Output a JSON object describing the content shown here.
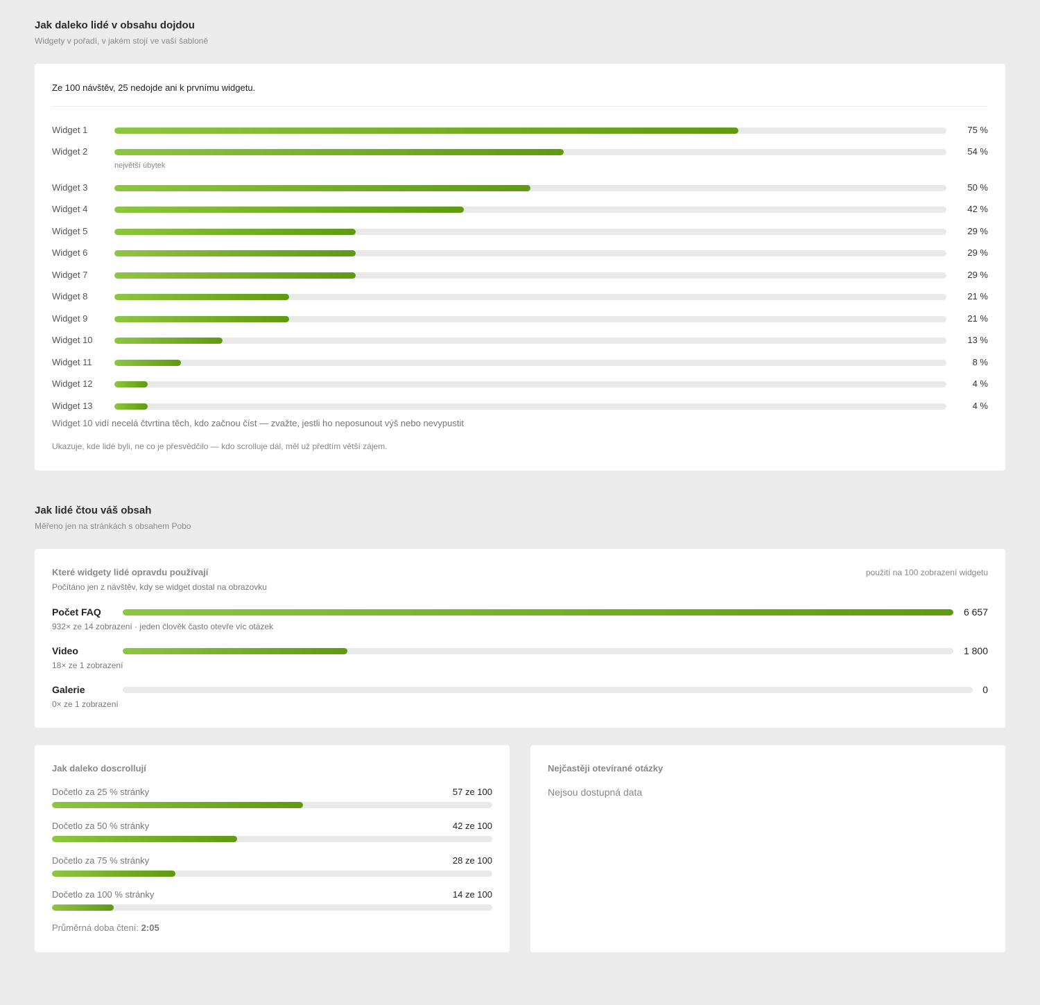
{
  "funnel_section": {
    "title": "Jak daleko lidé v obsahu dojdou",
    "subtitle": "Widgety v pořadí, v jakém stojí ve vaší šabloně",
    "headline": "Ze 100 návštěv, 25 nedojde ani k prvnímu widgetu.",
    "biggest_drop_label": "největší úbytek",
    "note": "Widget 10 vidí necelá čtvrtina těch, kdo začnou číst — zvažte, jestli ho neposunout výš nebo nevypustit",
    "footer": "Ukazuje, kde lidé byli, ne co je přesvědčilo — kdo scrolluje dál, měl už předtím větší zájem."
  },
  "chart_data": {
    "type": "bar",
    "categories": [
      "Widget 1",
      "Widget 2",
      "Widget 3",
      "Widget 4",
      "Widget 5",
      "Widget 6",
      "Widget 7",
      "Widget 8",
      "Widget 9",
      "Widget 10",
      "Widget 11",
      "Widget 12",
      "Widget 13"
    ],
    "values": [
      75,
      54,
      50,
      42,
      29,
      29,
      29,
      21,
      21,
      13,
      8,
      4,
      4
    ],
    "value_labels": [
      "75 %",
      "54 %",
      "50 %",
      "42 %",
      "29 %",
      "29 %",
      "29 %",
      "21 %",
      "21 %",
      "13 %",
      "8 %",
      "4 %",
      "4 %"
    ],
    "ylim": [
      0,
      100
    ],
    "orientation": "horizontal",
    "fill_colors": [
      "#8dc63f",
      "#5f9a10"
    ]
  },
  "reading_section": {
    "title": "Jak lidé čtou váš obsah",
    "subtitle": "Měřeno jen na stránkách s obsahem Pobo"
  },
  "usage": {
    "title": "Které widgety lidé opravdu používají",
    "unit_label": "použití na 100 zobrazení widgetu",
    "subtitle": "Počítáno jen z návštěv, kdy se widget dostal na obrazovku",
    "max_value": 6657,
    "rows": [
      {
        "name": "Počet FAQ",
        "value": 6657,
        "value_label": "6 657",
        "detail": "932× ze 14 zobrazení · jeden člověk často otevře víc otázek"
      },
      {
        "name": "Video",
        "value": 1800,
        "value_label": "1 800",
        "detail": "18× ze 1 zobrazení"
      },
      {
        "name": "Galerie",
        "value": 0,
        "value_label": "0",
        "detail": "0× ze 1 zobrazení"
      }
    ]
  },
  "scroll": {
    "title": "Jak daleko doscrollují",
    "rows": [
      {
        "label": "Dočetlo za 25 % stránky",
        "value": 57,
        "value_label": "57 ze 100"
      },
      {
        "label": "Dočetlo za 50 % stránky",
        "value": 42,
        "value_label": "42 ze 100"
      },
      {
        "label": "Dočetlo za 75 % stránky",
        "value": 28,
        "value_label": "28 ze 100"
      },
      {
        "label": "Dočetlo za 100 % stránky",
        "value": 14,
        "value_label": "14 ze 100"
      }
    ],
    "avg_label": "Průměrná doba čtení:",
    "avg_value": "2:05"
  },
  "questions": {
    "title": "Nejčastěji otevírané otázky",
    "empty": "Nejsou dostupná data"
  }
}
